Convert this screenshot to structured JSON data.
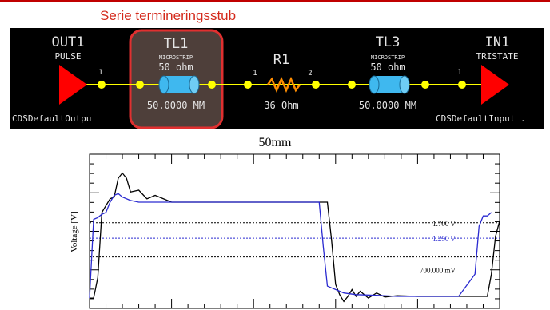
{
  "slide": {
    "title": "Serie termineringsstub"
  },
  "schematic": {
    "out": {
      "name": "OUT1",
      "type": "PULSE",
      "ref": "CDSDefaultOutpu"
    },
    "tl1": {
      "name": "TL1",
      "type": "MICROSTRIP",
      "impedance": "50 ohm",
      "length": "50.0000 MM"
    },
    "r1": {
      "name": "R1",
      "value": "36 Ohm",
      "pin1": "1",
      "pin2": "2"
    },
    "tl3": {
      "name": "TL3",
      "type": "MICROSTRIP",
      "impedance": "50 ohm",
      "length": "50.0000 MM"
    },
    "in": {
      "name": "IN1",
      "type": "TRISTATE",
      "ref": "CDSDefaultInput ."
    },
    "pin_labels": [
      "1",
      "1"
    ],
    "colors": {
      "background": "#000000",
      "driver": "#ff0000",
      "node": "#ffff00",
      "tline": "#00bfff",
      "resistor": "#ff8c00",
      "text": "#e6e6e6",
      "highlight": "#e03030"
    }
  },
  "chart_data": {
    "type": "line",
    "title": "50mm",
    "ylabel": "Voltage [V]",
    "xlabel": "",
    "grid": false,
    "xlim": [
      0,
      100
    ],
    "ylim": [
      -0.8,
      3.7
    ],
    "series": [
      {
        "color": "#000000",
        "x": [
          0,
          1,
          2,
          3,
          4,
          5,
          6,
          7,
          8,
          9,
          10,
          12,
          14,
          16,
          20,
          30,
          40,
          50,
          55,
          58,
          59,
          60,
          61,
          62,
          63,
          64,
          65,
          66,
          68,
          70,
          72,
          75,
          80,
          90,
          95,
          97,
          98,
          99,
          100
        ],
        "y": [
          -0.5,
          -0.5,
          0.1,
          2.0,
          2.2,
          2.4,
          2.45,
          3.0,
          3.15,
          3.0,
          2.6,
          2.65,
          2.4,
          2.5,
          2.3,
          2.3,
          2.3,
          2.3,
          2.3,
          2.3,
          1.2,
          -0.1,
          -0.4,
          -0.6,
          -0.45,
          -0.25,
          -0.45,
          -0.3,
          -0.5,
          -0.35,
          -0.47,
          -0.43,
          -0.45,
          -0.45,
          -0.45,
          -0.45,
          0.2,
          1.3,
          1.75
        ]
      },
      {
        "color": "#2a2ad0",
        "x": [
          0,
          1,
          2,
          3,
          4,
          5,
          6,
          7,
          8,
          10,
          12,
          14,
          20,
          30,
          40,
          50,
          56,
          57,
          58,
          59,
          60,
          62,
          65,
          70,
          75,
          80,
          90,
          94,
          95,
          96,
          97,
          98
        ],
        "y": [
          -0.5,
          1.8,
          1.85,
          1.95,
          2.0,
          2.3,
          2.5,
          2.55,
          2.45,
          2.35,
          2.3,
          2.3,
          2.3,
          2.3,
          2.3,
          2.3,
          2.3,
          1.0,
          -0.15,
          -0.2,
          -0.25,
          -0.35,
          -0.4,
          -0.42,
          -0.45,
          -0.45,
          -0.45,
          0.2,
          1.6,
          1.9,
          1.9,
          2.0
        ]
      }
    ],
    "hlines": [
      {
        "y": 1.7,
        "label": "1.700 V",
        "color": "#000000"
      },
      {
        "y": 1.25,
        "label": "1.250 V",
        "color": "#2a2ad0"
      },
      {
        "y": 0.7,
        "label": "700.000 mV",
        "color": "#000000"
      }
    ]
  }
}
